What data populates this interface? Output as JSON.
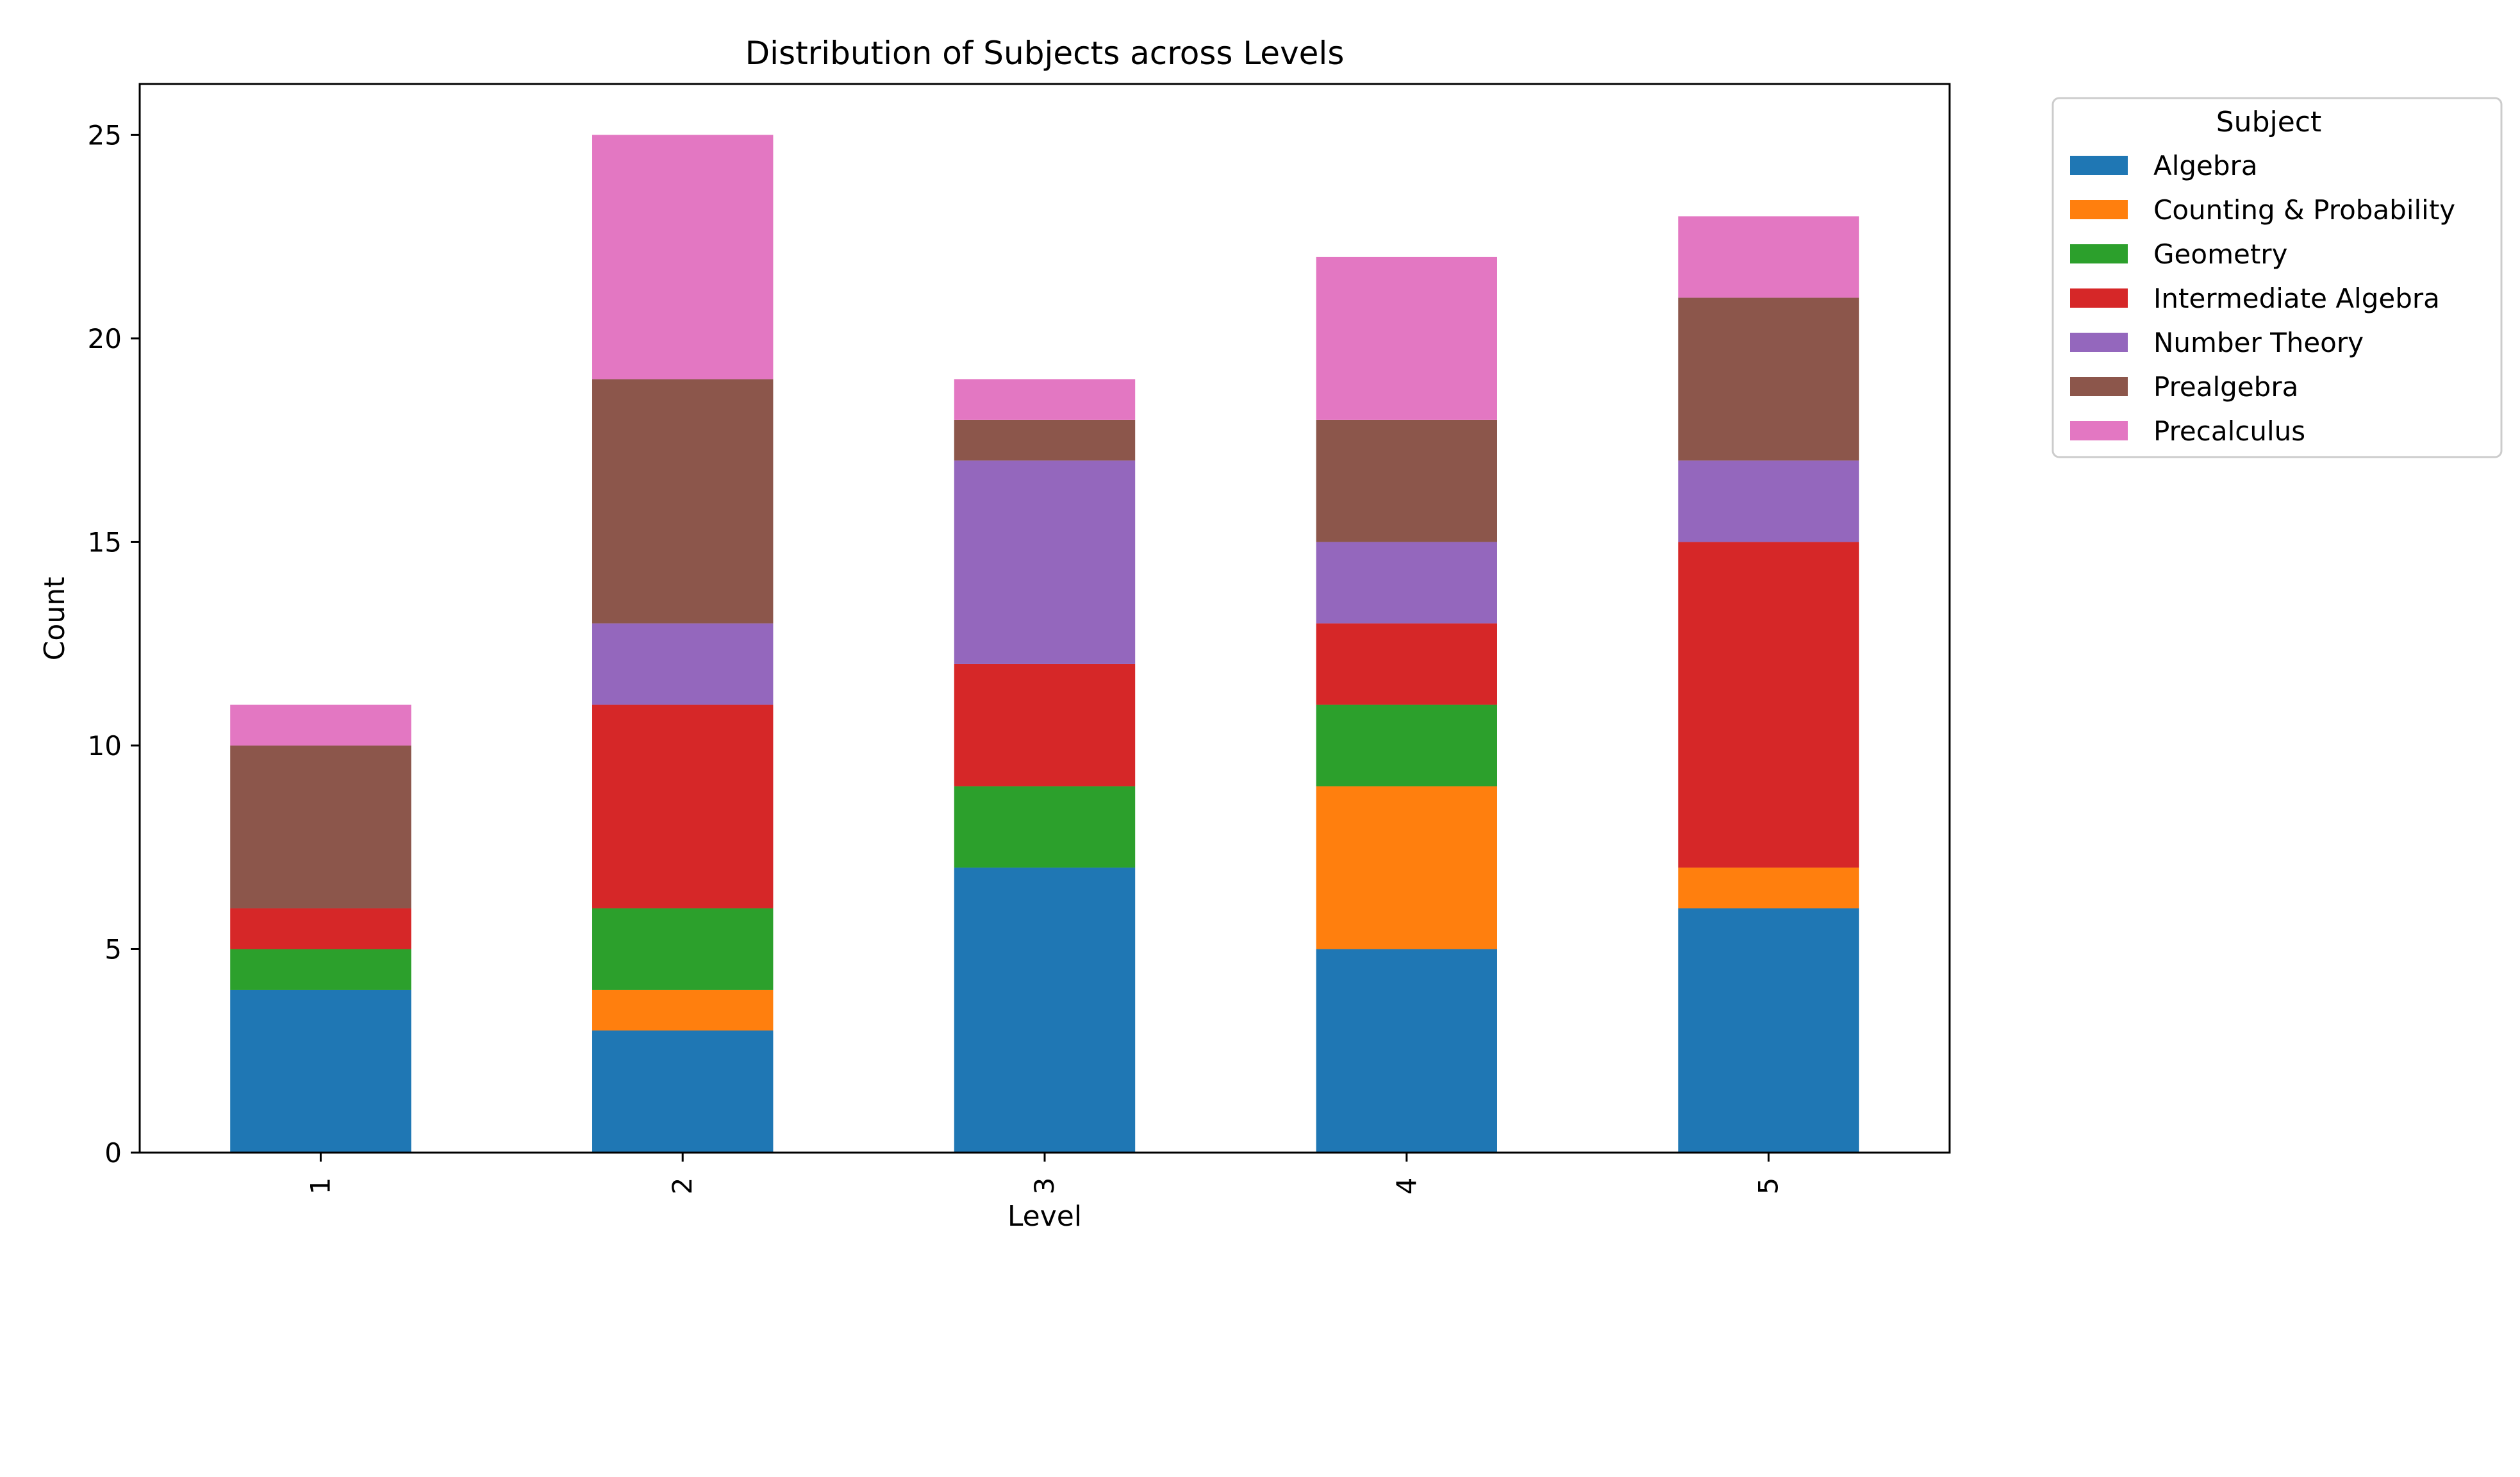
{
  "chart_data": {
    "type": "bar",
    "stacked": true,
    "title": "Distribution of Subjects across Levels",
    "xlabel": "Level",
    "ylabel": "Count",
    "categories": [
      "1",
      "2",
      "3",
      "4",
      "5"
    ],
    "ylim": [
      0,
      26.25
    ],
    "yticks": [
      0,
      5,
      10,
      15,
      20,
      25
    ],
    "grid": false,
    "legend": {
      "title": "Subject",
      "placement": "outside-top-right"
    },
    "series": [
      {
        "name": "Algebra",
        "color": "#1f77b4",
        "values": [
          4,
          3,
          7,
          5,
          6
        ]
      },
      {
        "name": "Counting & Probability",
        "color": "#ff7f0e",
        "values": [
          0,
          1,
          0,
          4,
          1
        ]
      },
      {
        "name": "Geometry",
        "color": "#2ca02c",
        "values": [
          1,
          2,
          2,
          2,
          0
        ]
      },
      {
        "name": "Intermediate Algebra",
        "color": "#d62728",
        "values": [
          1,
          5,
          3,
          2,
          8
        ]
      },
      {
        "name": "Number Theory",
        "color": "#9467bd",
        "values": [
          0,
          2,
          5,
          2,
          2
        ]
      },
      {
        "name": "Prealgebra",
        "color": "#8c564b",
        "values": [
          4,
          6,
          1,
          3,
          4
        ]
      },
      {
        "name": "Precalculus",
        "color": "#e377c2",
        "values": [
          1,
          6,
          1,
          4,
          2
        ]
      }
    ]
  }
}
